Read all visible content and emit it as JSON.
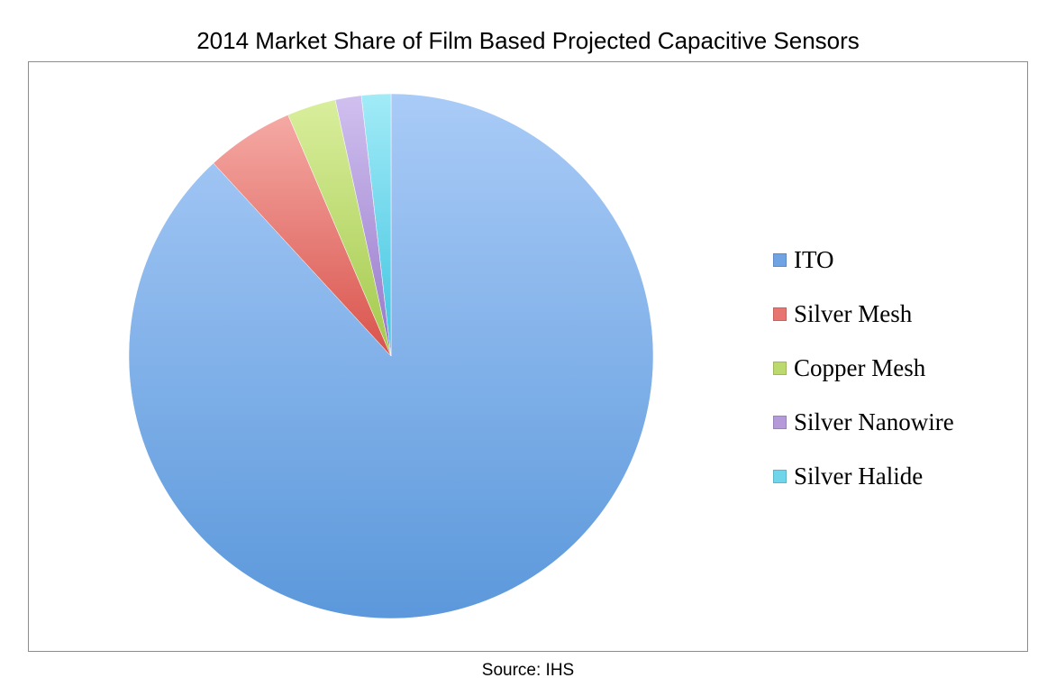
{
  "chart_data": {
    "type": "pie",
    "title": "2014 Market Share of Film Based Projected Capacitive Sensors",
    "source": "Source: IHS",
    "categories": [
      "ITO",
      "Silver Mesh",
      "Copper Mesh",
      "Silver Nanowire",
      "Silver Halide"
    ],
    "values": [
      87.8,
      5.4,
      3.0,
      1.6,
      1.8
    ],
    "unit": "%",
    "colors": [
      "#6fa3e3",
      "#e8756f",
      "#bcd96e",
      "#b49ad9",
      "#6fd5ea"
    ],
    "legend_position": "right",
    "start_angle": "top, clockwise"
  }
}
